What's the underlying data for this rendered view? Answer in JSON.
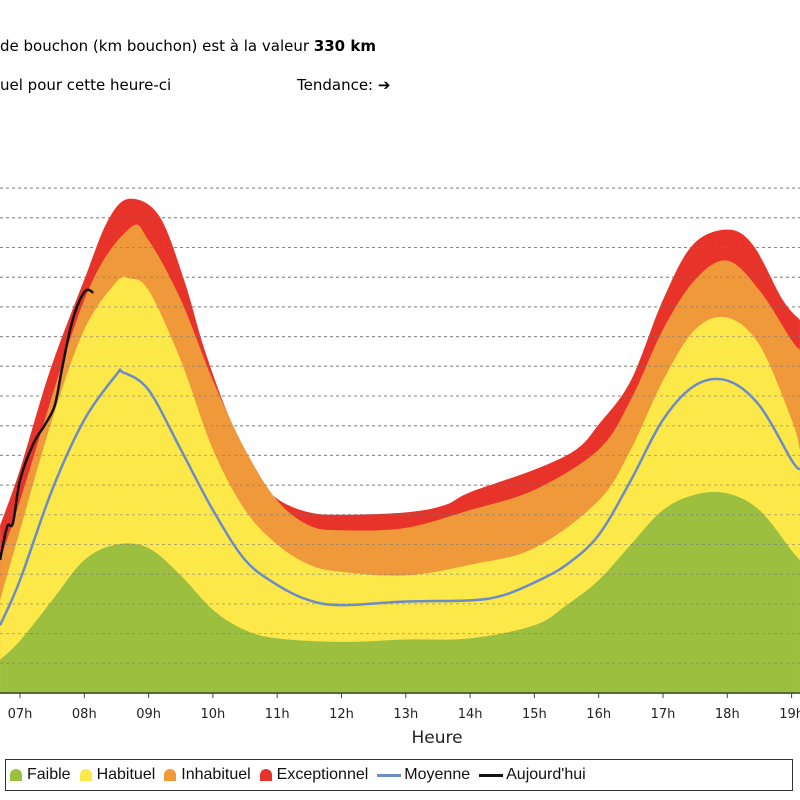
{
  "header": {
    "line1_prefix": "de bouchon (km bouchon) est à la valeur ",
    "line1_value": "330 km",
    "line2": "uel pour cette heure-ci",
    "trend_label": "Tendance:",
    "trend_icon": "arrow-right-icon",
    "trend_arrow": "➔"
  },
  "colors": {
    "exceptionnel": "#e8332a",
    "inhabituel": "#f0993a",
    "habituel": "#fde84a",
    "faible": "#9dbf40",
    "moyenne": "#6b8cc7",
    "aujourdhui": "#111111"
  },
  "chart_data": {
    "type": "area",
    "xlabel": "Heure",
    "ylabel": "",
    "unit": "km",
    "x_ticks": [
      "07h",
      "08h",
      "09h",
      "10h",
      "11h",
      "12h",
      "13h",
      "14h",
      "15h",
      "16h",
      "17h",
      "18h",
      "19h"
    ],
    "x_tick_hours": [
      7,
      8,
      9,
      10,
      11,
      12,
      13,
      14,
      15,
      16,
      17,
      18,
      19
    ],
    "xlim": [
      6.69,
      19.13
    ],
    "ylim": [
      0,
      430
    ],
    "grid_step": 25,
    "grid": true,
    "legend_position": "bottom",
    "series": [
      {
        "name": "Exceptionnel",
        "kind": "area",
        "x": [
          6.69,
          7,
          7.47,
          8,
          8.37,
          8.7,
          9.16,
          9.55,
          9.87,
          10.27,
          10.73,
          11.04,
          11.5,
          12,
          13,
          13.6,
          14,
          15,
          15.65,
          16,
          16.5,
          17,
          17.46,
          18,
          18.4,
          18.86,
          19.13
        ],
        "y": [
          141,
          188,
          272,
          348,
          398,
          416,
          402,
          348,
          289,
          230,
          180,
          162,
          152,
          150,
          152,
          158,
          169,
          188,
          205,
          226,
          263,
          331,
          377,
          390,
          377,
          331,
          314
        ]
      },
      {
        "name": "Inhabituel",
        "kind": "area",
        "x": [
          6.69,
          7,
          8,
          8.7,
          9,
          9.5,
          10,
          10.5,
          11,
          11.5,
          12,
          13,
          14,
          15,
          16,
          16.5,
          17,
          17.5,
          18,
          18.5,
          19,
          19.13
        ],
        "y": [
          112,
          162,
          331,
          391,
          381,
          331,
          263,
          205,
          162,
          141,
          137,
          139,
          154,
          171,
          205,
          247,
          306,
          348,
          364,
          339,
          297,
          289
        ]
      },
      {
        "name": "Habituel",
        "kind": "area",
        "x": [
          6.69,
          7,
          7.5,
          8,
          8.5,
          8.7,
          9,
          9.5,
          10,
          10.5,
          11,
          11.5,
          12,
          13,
          14,
          15,
          16,
          16.5,
          17,
          17.5,
          18,
          18.5,
          19,
          19.13
        ],
        "y": [
          78,
          137,
          230,
          306,
          346,
          349,
          339,
          280,
          205,
          154,
          125,
          108,
          102,
          99,
          108,
          122,
          162,
          205,
          263,
          306,
          316,
          293,
          230,
          205
        ]
      },
      {
        "name": "Faible",
        "kind": "area",
        "x": [
          6.69,
          7,
          7.5,
          8,
          8.5,
          9,
          9.5,
          10,
          10.5,
          11,
          12,
          13,
          14,
          15,
          15.5,
          16,
          16.5,
          17,
          17.5,
          18,
          18.5,
          19,
          19.13
        ],
        "y": [
          28,
          44,
          78,
          112,
          125,
          122,
          99,
          70,
          53,
          46,
          43,
          45,
          46,
          57,
          74,
          95,
          125,
          154,
          167,
          168,
          154,
          120,
          112
        ]
      },
      {
        "name": "Moyenne",
        "kind": "line",
        "x": [
          6.69,
          7,
          7.5,
          8,
          8.5,
          8.6,
          9,
          9.5,
          10,
          10.5,
          11,
          11.5,
          12,
          13,
          14,
          14.5,
          15,
          15.5,
          16,
          16.5,
          17,
          17.5,
          18,
          18.5,
          19,
          19.13
        ],
        "y": [
          57,
          95,
          171,
          230,
          268,
          270,
          255,
          205,
          154,
          112,
          91,
          78,
          74,
          77,
          78,
          82,
          93,
          108,
          133,
          179,
          230,
          259,
          263,
          242,
          196,
          188
        ]
      },
      {
        "name": "Aujourd'hui",
        "kind": "line",
        "x": [
          6.69,
          6.8,
          6.89,
          7,
          7.2,
          7.39,
          7.54,
          7.65,
          7.78,
          7.9,
          8.03,
          8.14
        ],
        "y": [
          112,
          140,
          143,
          179,
          209,
          226,
          242,
          272,
          306,
          327,
          339,
          337
        ]
      }
    ]
  }
}
